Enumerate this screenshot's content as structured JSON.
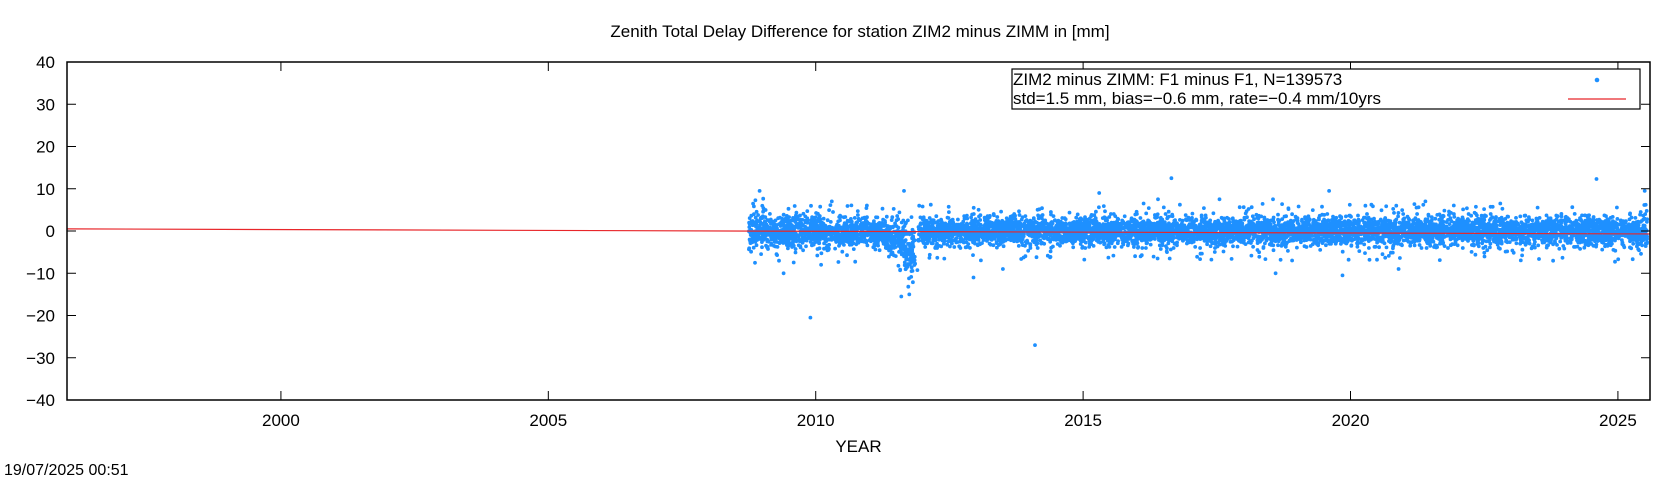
{
  "chart_data": {
    "type": "scatter",
    "title": "Zenith Total Delay Difference for station ZIM2 minus ZIMM in [mm]",
    "xlabel": "YEAR",
    "ylabel": "",
    "xlim": [
      1996,
      2025.6
    ],
    "ylim": [
      -40,
      40
    ],
    "x_ticks": [
      2000,
      2005,
      2010,
      2015,
      2020,
      2025
    ],
    "y_ticks": [
      -40,
      -30,
      -20,
      -10,
      0,
      10,
      20,
      30,
      40
    ],
    "grid": false,
    "legend_position": "top-right",
    "legend": [
      {
        "label": "ZIM2 minus ZIMM: F1 minus F1, N=139573",
        "kind": "points",
        "color": "#1e90ff"
      },
      {
        "label": "std=1.5 mm, bias=−0.6 mm, rate=−0.4 mm/10yrs",
        "kind": "line",
        "color": "#e8262a"
      }
    ],
    "series": [
      {
        "kind": "points",
        "color": "#1e90ff",
        "data_start": 2008.75,
        "data_end": 2025.55,
        "N": 139573,
        "envelope": [
          [
            2008.8,
            -5,
            6
          ],
          [
            2009.3,
            -4,
            4
          ],
          [
            2010.0,
            -4,
            3.5
          ],
          [
            2011.0,
            -4,
            3.5
          ],
          [
            2011.5,
            -6,
            2.5
          ],
          [
            2011.8,
            -12,
            2
          ],
          [
            2012.0,
            -3.5,
            3.5
          ],
          [
            2014.0,
            -3.5,
            3.5
          ],
          [
            2017.0,
            -3.5,
            3.5
          ],
          [
            2020.0,
            -3.5,
            3.5
          ],
          [
            2023.0,
            -3.5,
            3.5
          ],
          [
            2025.5,
            -4,
            3.5
          ]
        ],
        "outliers": [
          [
            2009.9,
            -20.5
          ],
          [
            2014.1,
            -27
          ],
          [
            2016.65,
            12.5
          ],
          [
            2024.6,
            12.3
          ],
          [
            2011.6,
            -15.5
          ],
          [
            2011.75,
            -15
          ],
          [
            2011.65,
            9.5
          ],
          [
            2008.95,
            9.5
          ],
          [
            2019.6,
            9.5
          ],
          [
            2018.55,
            7.5
          ],
          [
            2015.3,
            9
          ],
          [
            2017.55,
            7.5
          ],
          [
            2025.5,
            9.5
          ],
          [
            2010.3,
            7
          ],
          [
            2012.95,
            -11
          ],
          [
            2013.5,
            -9
          ],
          [
            2018.6,
            -10
          ],
          [
            2019.85,
            -10.5
          ],
          [
            2021.4,
            7
          ],
          [
            2022.8,
            6.5
          ],
          [
            2009.4,
            -10
          ],
          [
            2010.1,
            -8
          ],
          [
            2016.4,
            7.5
          ],
          [
            2020.9,
            -9
          ]
        ]
      },
      {
        "kind": "line",
        "color": "#e8262a",
        "points": [
          [
            1996,
            0.5
          ],
          [
            2025.6,
            -0.7
          ]
        ]
      }
    ]
  },
  "footer": {
    "timestamp": "19/07/2025 00:51"
  }
}
